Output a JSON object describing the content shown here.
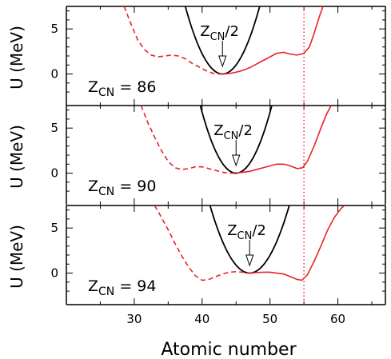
{
  "chart_data": {
    "type": "line",
    "xlabel": "Atomic number",
    "ylabel": "U (MeV)",
    "xlim": [
      20,
      67
    ],
    "ylim": [
      -3.5,
      7.5
    ],
    "x_ticks": [
      30,
      40,
      50,
      60
    ],
    "y_ticks": [
      0,
      5
    ],
    "vertical_line_x": 55,
    "arrow_label": "Z",
    "arrow_label_sub": "CN",
    "arrow_label_tail": "/2",
    "colors": {
      "dashed": "#e8222a",
      "solid": "#e8222a",
      "parabola": "#000000"
    },
    "panels": [
      {
        "label_main": "Z",
        "label_sub": "CN",
        "label_value": " = 86",
        "zcn": 86,
        "parabola": {
          "vertex_x": 43,
          "curvature": 0.25
        },
        "dashed": [
          [
            28.5,
            7.5
          ],
          [
            29.5,
            5.6
          ],
          [
            30.5,
            3.8
          ],
          [
            31.5,
            2.7
          ],
          [
            32.5,
            2.1
          ],
          [
            33.5,
            1.9
          ],
          [
            34.5,
            2.0
          ],
          [
            35.5,
            2.1
          ],
          [
            36.5,
            2.0
          ],
          [
            37.5,
            1.7
          ],
          [
            38.5,
            1.2
          ],
          [
            39.5,
            0.8
          ],
          [
            40.5,
            0.4
          ],
          [
            41.5,
            0.1
          ],
          [
            42.5,
            0.0
          ],
          [
            43,
            0.0
          ]
        ],
        "solid": [
          [
            43,
            0.0
          ],
          [
            44,
            0.05
          ],
          [
            45,
            0.2
          ],
          [
            46,
            0.4
          ],
          [
            47,
            0.7
          ],
          [
            48,
            1.1
          ],
          [
            49,
            1.5
          ],
          [
            50,
            1.9
          ],
          [
            51,
            2.3
          ],
          [
            52,
            2.4
          ],
          [
            53,
            2.2
          ],
          [
            54,
            2.1
          ],
          [
            55,
            2.3
          ],
          [
            55.8,
            3.0
          ],
          [
            56.5,
            4.5
          ],
          [
            57.2,
            6.2
          ],
          [
            57.8,
            7.5
          ]
        ],
        "arrow_x": 43
      },
      {
        "label_main": "Z",
        "label_sub": "CN",
        "label_value": " = 90",
        "zcn": 90,
        "parabola": {
          "vertex_x": 45,
          "curvature": 0.27
        },
        "dashed": [
          [
            31,
            7.5
          ],
          [
            32,
            5.6
          ],
          [
            33,
            4.0
          ],
          [
            34,
            2.5
          ],
          [
            35,
            1.3
          ],
          [
            36,
            0.6
          ],
          [
            37,
            0.4
          ],
          [
            38,
            0.5
          ],
          [
            39,
            0.7
          ],
          [
            40,
            0.7
          ],
          [
            41,
            0.5
          ],
          [
            42,
            0.3
          ],
          [
            43,
            0.1
          ],
          [
            44,
            0.0
          ],
          [
            45,
            0.0
          ]
        ],
        "solid": [
          [
            45,
            0.0
          ],
          [
            46,
            0.1
          ],
          [
            47,
            0.2
          ],
          [
            48,
            0.4
          ],
          [
            49,
            0.6
          ],
          [
            50,
            0.8
          ],
          [
            51,
            1.0
          ],
          [
            52,
            1.0
          ],
          [
            53,
            0.8
          ],
          [
            54,
            0.5
          ],
          [
            54.8,
            0.6
          ],
          [
            55.5,
            1.3
          ],
          [
            56.5,
            3.0
          ],
          [
            57.5,
            5.0
          ],
          [
            58.3,
            6.5
          ],
          [
            59,
            7.5
          ]
        ],
        "arrow_x": 45
      },
      {
        "label_main": "Z",
        "label_sub": "CN",
        "label_value": " = 94",
        "zcn": 94,
        "parabola": {
          "vertex_x": 47,
          "curvature": 0.22
        },
        "dashed": [
          [
            33,
            7.5
          ],
          [
            34,
            6.2
          ],
          [
            35,
            4.8
          ],
          [
            36,
            3.3
          ],
          [
            37,
            1.9
          ],
          [
            38,
            0.7
          ],
          [
            39,
            -0.3
          ],
          [
            40,
            -0.8
          ],
          [
            41,
            -0.7
          ],
          [
            42,
            -0.4
          ],
          [
            43,
            -0.1
          ],
          [
            44,
            0.1
          ],
          [
            45,
            0.15
          ],
          [
            46,
            0.1
          ],
          [
            47,
            0.0
          ]
        ],
        "solid": [
          [
            47,
            0.0
          ],
          [
            48,
            0.05
          ],
          [
            49,
            0.1
          ],
          [
            50,
            0.1
          ],
          [
            51,
            0.0
          ],
          [
            52,
            -0.1
          ],
          [
            53,
            -0.4
          ],
          [
            54,
            -0.7
          ],
          [
            54.7,
            -0.8
          ],
          [
            55.5,
            -0.2
          ],
          [
            56.5,
            1.3
          ],
          [
            57.5,
            3.0
          ],
          [
            58.5,
            4.8
          ],
          [
            59.5,
            6.2
          ],
          [
            60.5,
            7.2
          ],
          [
            61,
            7.5
          ]
        ],
        "arrow_x": 47
      }
    ]
  }
}
